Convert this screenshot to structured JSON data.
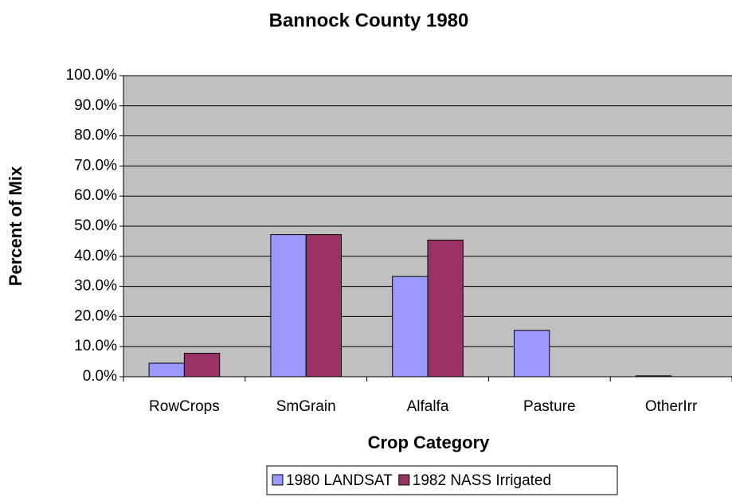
{
  "chart_data": {
    "type": "bar",
    "title": "Bannock County 1980",
    "x_label": "Crop Category",
    "y_label": "Percent of Mix",
    "categories": [
      "RowCrops",
      "SmGrain",
      "Alfalfa",
      "Pasture",
      "OtherIrr"
    ],
    "series": [
      {
        "name": "1980 LANDSAT",
        "color": "#9999ff",
        "values": [
          4.5,
          47.2,
          33.3,
          15.4,
          0.3
        ]
      },
      {
        "name": "1982 NASS Irrigated",
        "color": "#993366",
        "values": [
          7.8,
          47.2,
          45.4,
          0,
          0
        ]
      }
    ],
    "ylim": [
      0,
      100
    ],
    "yticks": [
      {
        "value": 0,
        "label": "0.0%"
      },
      {
        "value": 10,
        "label": "10.0%"
      },
      {
        "value": 20,
        "label": "20.0%"
      },
      {
        "value": 30,
        "label": "30.0%"
      },
      {
        "value": 40,
        "label": "40.0%"
      },
      {
        "value": 50,
        "label": "50.0%"
      },
      {
        "value": 60,
        "label": "60.0%"
      },
      {
        "value": 70,
        "label": "70.0%"
      },
      {
        "value": 80,
        "label": "80.0%"
      },
      {
        "value": 90,
        "label": "90.0%"
      },
      {
        "value": 100,
        "label": "100.0%"
      }
    ],
    "grid": true,
    "plot_background": "#c0c0c0",
    "legend": "bottom"
  }
}
